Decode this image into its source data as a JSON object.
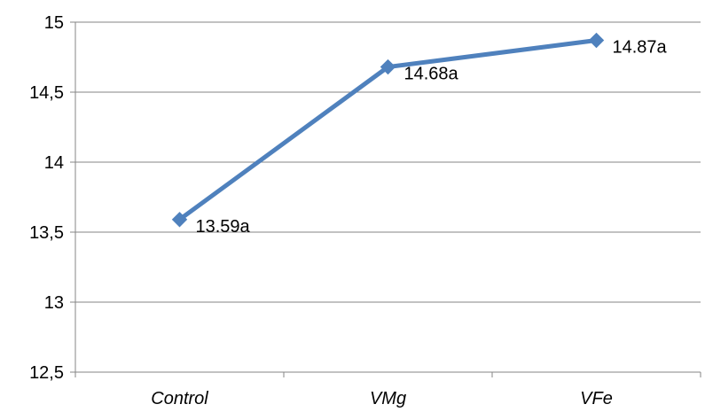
{
  "chart_data": {
    "type": "line",
    "categories": [
      "Control",
      "VMg",
      "VFe"
    ],
    "series": [
      {
        "values": [
          13.59,
          14.68,
          14.87
        ],
        "data_labels": [
          "13.59a",
          "14.68a",
          "14.87a"
        ]
      }
    ],
    "y_ticks": [
      "12,5",
      "13",
      "13,5",
      "14",
      "14,5",
      "15"
    ],
    "y_tick_values": [
      12.5,
      13,
      13.5,
      14,
      14.5,
      15
    ],
    "ylim": [
      12.5,
      15
    ],
    "grid": true,
    "legend": "none",
    "line_color": "#4f81bd",
    "marker": "diamond",
    "category_label_style": "italic"
  }
}
